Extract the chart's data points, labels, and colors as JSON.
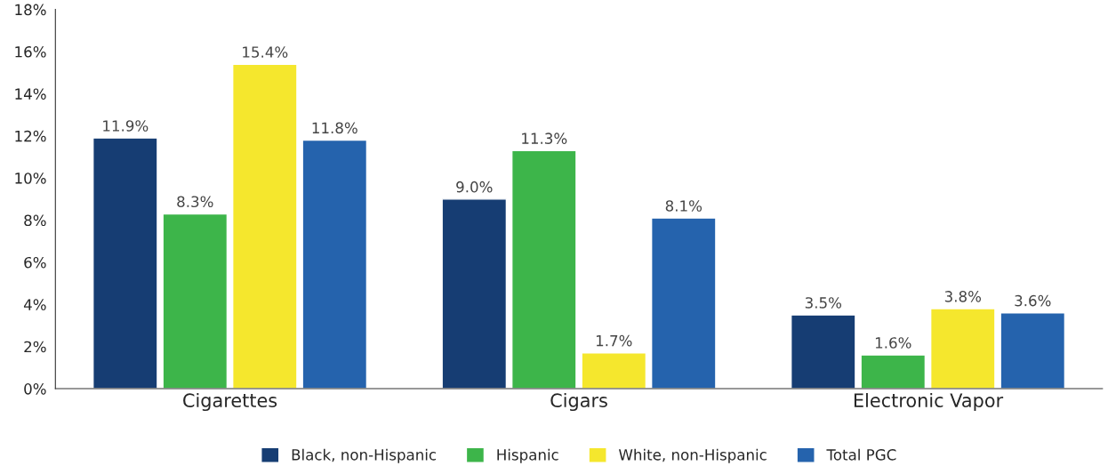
{
  "chart_data": {
    "type": "bar",
    "categories": [
      "Cigarettes",
      "Cigars",
      "Electronic Vapor"
    ],
    "series": [
      {
        "name": "Black, non-Hispanic",
        "color": "#163d73",
        "values": [
          11.9,
          9.0,
          3.5
        ],
        "value_labels": [
          "11.9%",
          "9.0%",
          "3.5%"
        ]
      },
      {
        "name": "Hispanic",
        "color": "#3db54a",
        "values": [
          8.3,
          11.3,
          1.6
        ],
        "value_labels": [
          "8.3%",
          "11.3%",
          "1.6%"
        ]
      },
      {
        "name": "White, non-Hispanic",
        "color": "#f5e72d",
        "values": [
          15.4,
          1.7,
          3.8
        ],
        "value_labels": [
          "15.4%",
          "1.7%",
          "3.8%"
        ]
      },
      {
        "name": "Total PGC",
        "color": "#2563ad",
        "values": [
          11.8,
          8.1,
          3.6
        ],
        "value_labels": [
          "11.8%",
          "8.1%",
          "3.6%"
        ]
      }
    ],
    "ylim": [
      0,
      18
    ],
    "yticks": [
      {
        "value": 0,
        "label": "0%"
      },
      {
        "value": 2,
        "label": "2%"
      },
      {
        "value": 4,
        "label": "4%"
      },
      {
        "value": 6,
        "label": "6%"
      },
      {
        "value": 8,
        "label": "8%"
      },
      {
        "value": 10,
        "label": "10%"
      },
      {
        "value": 12,
        "label": "12%"
      },
      {
        "value": 14,
        "label": "14%"
      },
      {
        "value": 16,
        "label": "16%"
      },
      {
        "value": 18,
        "label": "18%"
      }
    ],
    "grid": false,
    "legend": "bottom"
  }
}
